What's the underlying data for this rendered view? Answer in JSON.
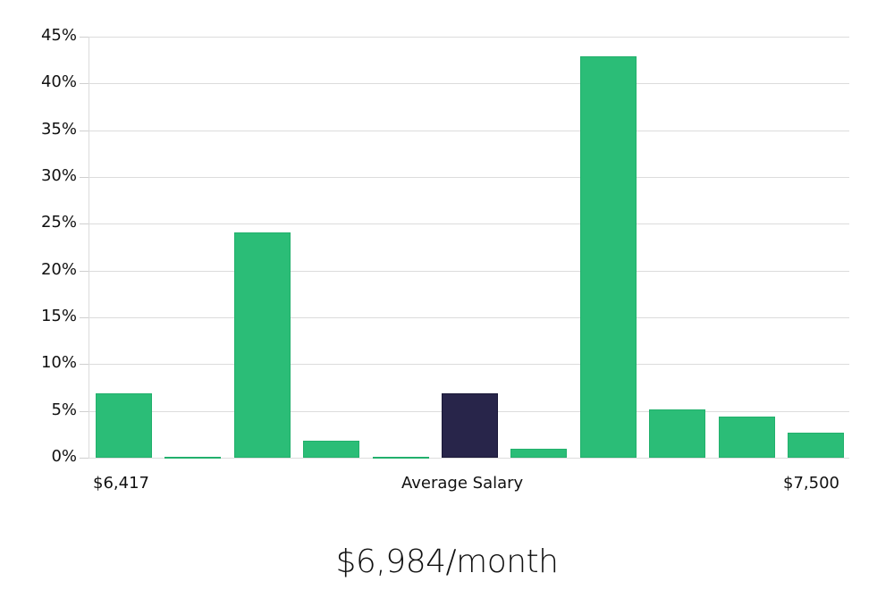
{
  "chart_data": {
    "type": "bar",
    "title": "$6,984/month",
    "xlabel": "Average Salary",
    "ylabel": "",
    "ylim": [
      0,
      45
    ],
    "yticks": [
      "0%",
      "5%",
      "10%",
      "15%",
      "20%",
      "25%",
      "30%",
      "35%",
      "40%",
      "45%"
    ],
    "x_range_labels": {
      "min": "$6,417",
      "center": "Average Salary",
      "max": "$7,500"
    },
    "grid": true,
    "legend": null,
    "categories": [
      "bin1",
      "bin2",
      "bin3",
      "bin4",
      "bin5",
      "bin6",
      "bin7",
      "bin8",
      "bin9",
      "bin10",
      "bin11"
    ],
    "values": [
      6.9,
      0.1,
      24.1,
      1.8,
      0.1,
      6.9,
      1.0,
      42.9,
      5.2,
      4.4,
      2.7
    ],
    "highlight_index": 5,
    "colors": {
      "bar": "#2bbd77",
      "bar_border": "#22b06c",
      "highlight": "#28254a",
      "highlight_border": "#1a1838",
      "grid": "#dcdcdc"
    }
  },
  "labels": {
    "x_min": "$6,417",
    "x_center": "Average Salary",
    "x_max": "$7,500",
    "title": "$6,984/month"
  }
}
